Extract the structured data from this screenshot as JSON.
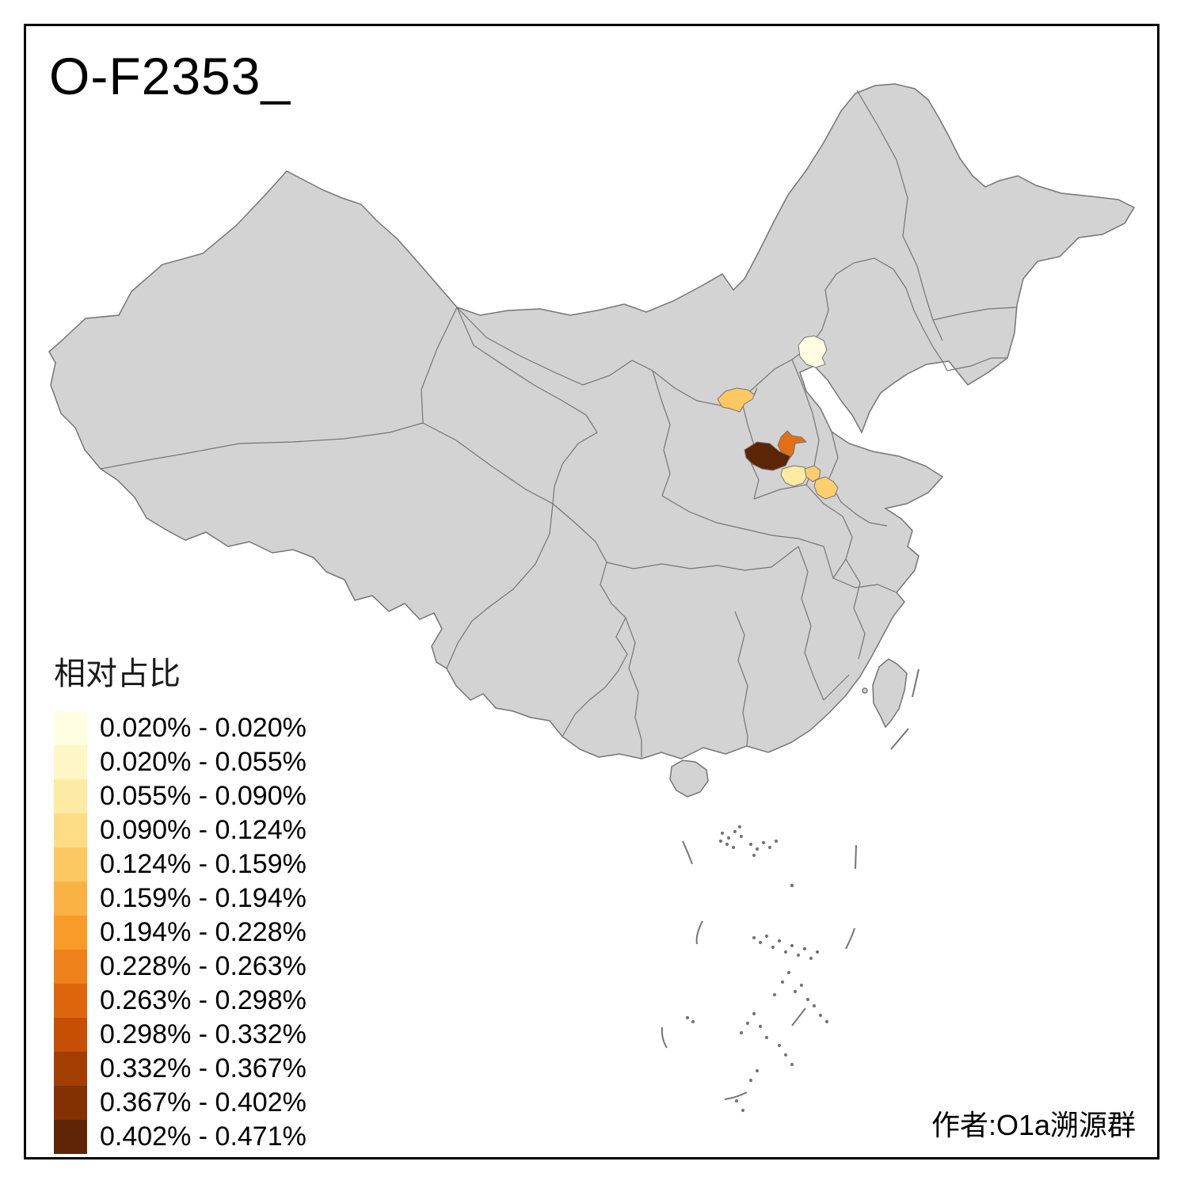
{
  "title": "O-F2353_",
  "author": "作者:O1a溯源群",
  "legend": {
    "title": "相对占比",
    "items": [
      {
        "label": "0.020% - 0.020%",
        "color": "#FFFEE3"
      },
      {
        "label": "0.020% - 0.055%",
        "color": "#FEF6C4"
      },
      {
        "label": "0.055% - 0.090%",
        "color": "#FDEBA3"
      },
      {
        "label": "0.090% - 0.124%",
        "color": "#FDDC85"
      },
      {
        "label": "0.124% - 0.159%",
        "color": "#FCC862"
      },
      {
        "label": "0.159% - 0.194%",
        "color": "#FBB245"
      },
      {
        "label": "0.194% - 0.228%",
        "color": "#F99B28"
      },
      {
        "label": "0.228% - 0.263%",
        "color": "#EE8119"
      },
      {
        "label": "0.263% - 0.298%",
        "color": "#DD660D"
      },
      {
        "label": "0.298% - 0.332%",
        "color": "#C74E05"
      },
      {
        "label": "0.332% - 0.367%",
        "color": "#A33E03"
      },
      {
        "label": "0.367% - 0.402%",
        "color": "#833103"
      },
      {
        "label": "0.402% - 0.471%",
        "color": "#5E2506"
      }
    ]
  },
  "map": {
    "base_fill": "#D3D3D3",
    "border_color": "#757575",
    "background": "#FFFFFF",
    "highlighted_regions": [
      {
        "id": "region-1",
        "bin": "0.020% - 0.020%",
        "color": "#FFFEE3"
      },
      {
        "id": "region-2",
        "bin": "0.124% - 0.159%",
        "color": "#FCC862"
      },
      {
        "id": "region-3",
        "bin": "0.263% - 0.298%",
        "color": "#E26F15"
      },
      {
        "id": "region-4",
        "bin": "0.402% - 0.471%",
        "color": "#5C2506"
      },
      {
        "id": "region-5",
        "bin": "0.055% - 0.090%",
        "color": "#FDEBA3"
      },
      {
        "id": "region-6",
        "bin": "0.090% - 0.124%",
        "color": "#FBCD6E"
      },
      {
        "id": "region-7",
        "bin": "0.124% - 0.159%",
        "color": "#FBCE6E"
      }
    ]
  }
}
